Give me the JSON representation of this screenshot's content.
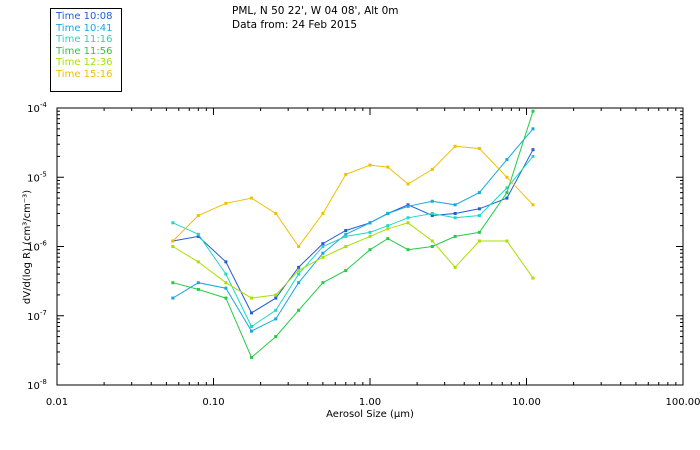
{
  "header": {
    "location": "PML, N 50 22', W 04 08', Alt 0m",
    "date": "Data from: 24 Feb 2015"
  },
  "chart_data": {
    "type": "line",
    "xlabel": "Aerosol Size (µm)",
    "ylabel": "dV/d(log R) (cm³/cm⁻³)",
    "xscale": "log",
    "yscale": "log",
    "xlim": [
      0.01,
      100
    ],
    "ylim": [
      1e-08,
      0.0001
    ],
    "xticks": [
      {
        "value": 0.01,
        "label": "0.01"
      },
      {
        "value": 0.1,
        "label": "0.10"
      },
      {
        "value": 1,
        "label": "1.00"
      },
      {
        "value": 10,
        "label": "10.00"
      },
      {
        "value": 100,
        "label": "100.00"
      }
    ],
    "yticks": [
      {
        "value": 1e-08,
        "base": "10",
        "exp": "-8"
      },
      {
        "value": 1e-07,
        "base": "10",
        "exp": "-7"
      },
      {
        "value": 1e-06,
        "base": "10",
        "exp": "-6"
      },
      {
        "value": 1e-05,
        "base": "10",
        "exp": "-5"
      },
      {
        "value": 0.0001,
        "base": "10",
        "exp": "-4"
      }
    ],
    "legend_position": "top-left",
    "x": [
      0.055,
      0.08,
      0.12,
      0.175,
      0.25,
      0.35,
      0.5,
      0.7,
      1.0,
      1.3,
      1.75,
      2.5,
      3.5,
      5.0,
      7.5,
      11.0
    ],
    "series": [
      {
        "name": "Time 10:08",
        "color": "#1f5ed6",
        "values": [
          1.2e-06,
          1.4e-06,
          6e-07,
          1.1e-07,
          1.8e-07,
          5e-07,
          1.1e-06,
          1.7e-06,
          2.2e-06,
          3e-06,
          4e-06,
          2.8e-06,
          3e-06,
          3.5e-06,
          5e-06,
          2.5e-05
        ]
      },
      {
        "name": "Time 10:41",
        "color": "#18a8e0",
        "values": [
          1.8e-07,
          3e-07,
          2.5e-07,
          6e-08,
          9e-08,
          3e-07,
          8e-07,
          1.5e-06,
          2.2e-06,
          3e-06,
          3.8e-06,
          4.5e-06,
          4e-06,
          6e-06,
          1.8e-05,
          5e-05
        ]
      },
      {
        "name": "Time 11:16",
        "color": "#20d8c0",
        "values": [
          2.2e-06,
          1.5e-06,
          4e-07,
          7e-08,
          1.2e-07,
          4e-07,
          1e-06,
          1.4e-06,
          1.6e-06,
          2e-06,
          2.6e-06,
          3e-06,
          2.6e-06,
          2.8e-06,
          7e-06,
          2e-05
        ]
      },
      {
        "name": "Time 11:56",
        "color": "#22cc44",
        "values": [
          3e-07,
          2.4e-07,
          1.8e-07,
          2.5e-08,
          5e-08,
          1.2e-07,
          3e-07,
          4.5e-07,
          9e-07,
          1.3e-06,
          9e-07,
          1e-06,
          1.4e-06,
          1.6e-06,
          6e-06,
          9e-05
        ]
      },
      {
        "name": "Time 12:36",
        "color": "#a8e000",
        "values": [
          1e-06,
          6e-07,
          3e-07,
          1.8e-07,
          2e-07,
          4.5e-07,
          7e-07,
          1e-06,
          1.4e-06,
          1.8e-06,
          2.2e-06,
          1.2e-06,
          5e-07,
          1.2e-06,
          1.2e-06,
          3.5e-07
        ]
      },
      {
        "name": "Time 15:16",
        "color": "#f0c000",
        "values": [
          1.2e-06,
          2.8e-06,
          4.2e-06,
          5e-06,
          3e-06,
          1e-06,
          3e-06,
          1.1e-05,
          1.5e-05,
          1.4e-05,
          8e-06,
          1.3e-05,
          2.8e-05,
          2.6e-05,
          1e-05,
          4e-06
        ]
      }
    ]
  }
}
